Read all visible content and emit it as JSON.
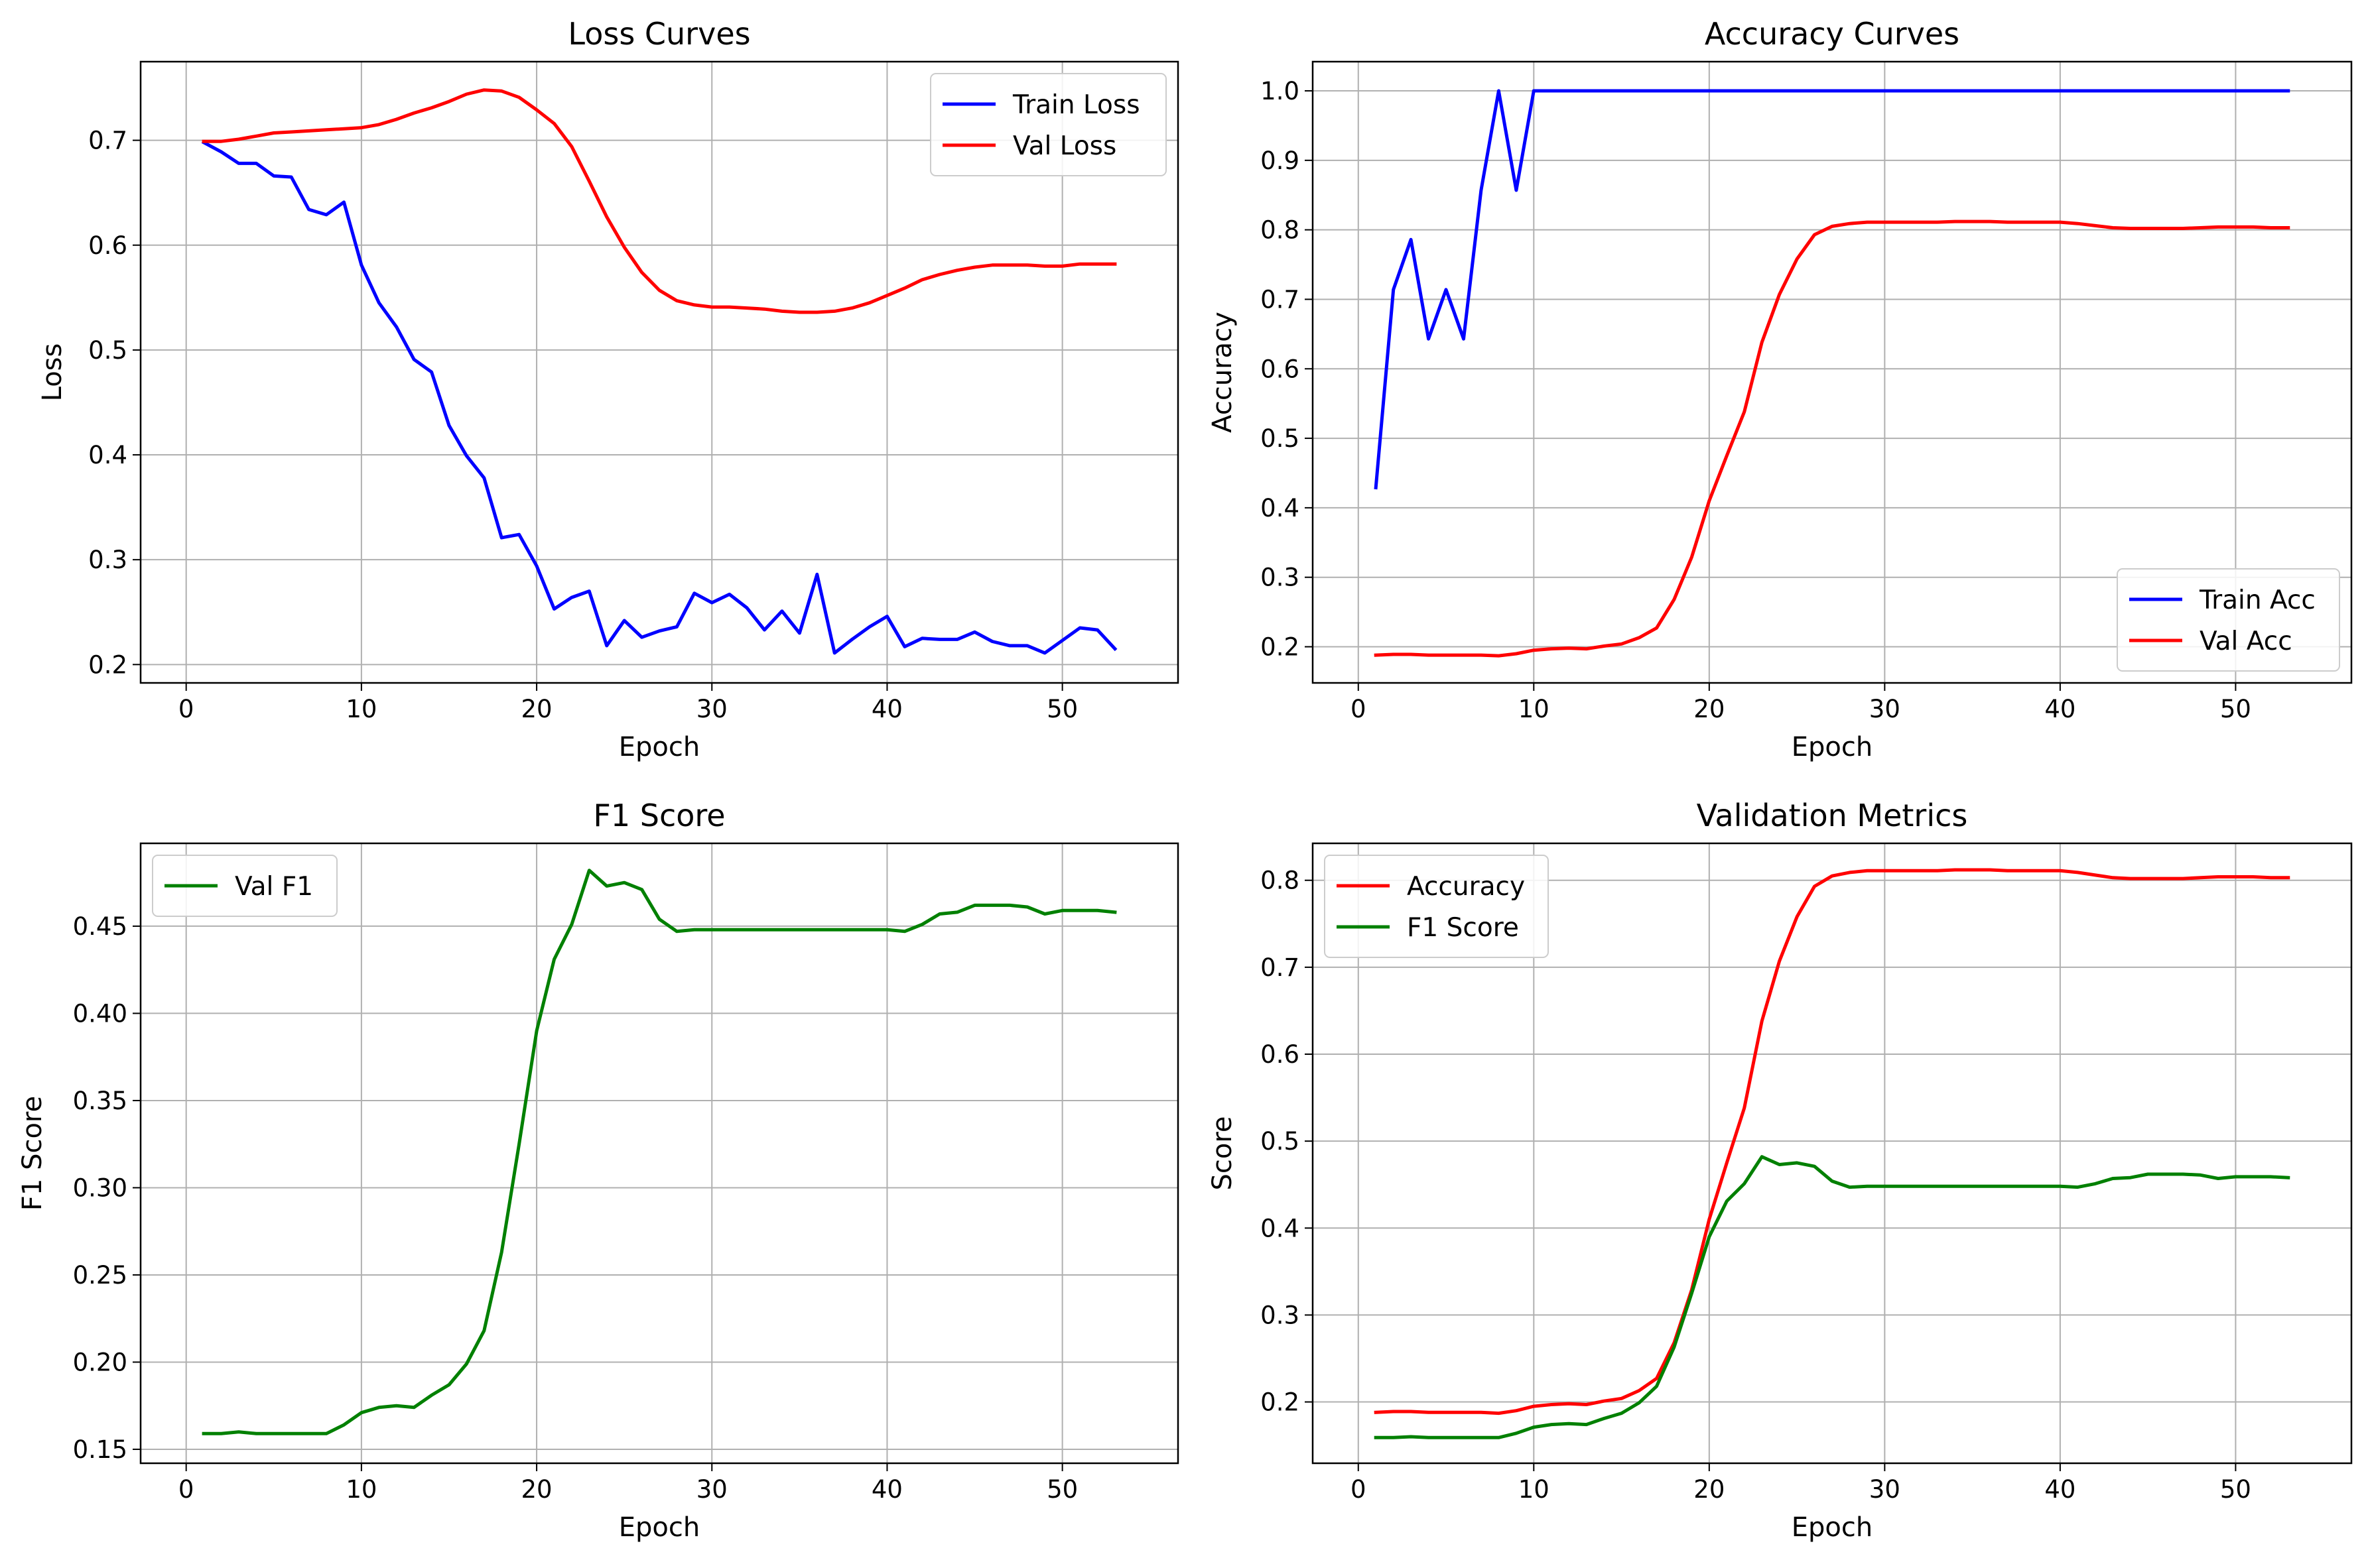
{
  "chart_data": [
    {
      "type": "line",
      "title": "Loss Curves",
      "xlabel": "Epoch",
      "ylabel": "Loss",
      "xlim": [
        -2.6,
        56.6
      ],
      "ylim": [
        0.1825,
        0.775
      ],
      "xticks": [
        0,
        10,
        20,
        30,
        40,
        50
      ],
      "yticks": [
        0.2,
        0.3,
        0.4,
        0.5,
        0.6,
        0.7
      ],
      "ytick_labels": [
        "0.2",
        "0.3",
        "0.4",
        "0.5",
        "0.6",
        "0.7"
      ],
      "grid": true,
      "legend_position": "upper right",
      "x": [
        1,
        2,
        3,
        4,
        5,
        6,
        7,
        8,
        9,
        10,
        11,
        12,
        13,
        14,
        15,
        16,
        17,
        18,
        19,
        20,
        21,
        22,
        23,
        24,
        25,
        26,
        27,
        28,
        29,
        30,
        31,
        32,
        33,
        34,
        35,
        36,
        37,
        38,
        39,
        40,
        41,
        42,
        43,
        44,
        45,
        46,
        47,
        48,
        49,
        50,
        51,
        52,
        53
      ],
      "series": [
        {
          "name": "Train Loss",
          "color": "#0000ff",
          "values": [
            0.698,
            0.689,
            0.678,
            0.678,
            0.666,
            0.665,
            0.634,
            0.629,
            0.641,
            0.581,
            0.545,
            0.522,
            0.491,
            0.479,
            0.428,
            0.399,
            0.378,
            0.321,
            0.324,
            0.294,
            0.253,
            0.264,
            0.27,
            0.218,
            0.242,
            0.226,
            0.232,
            0.236,
            0.268,
            0.259,
            0.267,
            0.254,
            0.233,
            0.251,
            0.23,
            0.286,
            0.211,
            0.224,
            0.236,
            0.246,
            0.217,
            0.225,
            0.224,
            0.224,
            0.231,
            0.222,
            0.218,
            0.218,
            0.211,
            0.223,
            0.235,
            0.233,
            0.215
          ]
        },
        {
          "name": "Val Loss",
          "color": "#ff0000",
          "values": [
            0.699,
            0.699,
            0.701,
            0.704,
            0.707,
            0.708,
            0.709,
            0.71,
            0.711,
            0.712,
            0.715,
            0.72,
            0.726,
            0.731,
            0.737,
            0.744,
            0.748,
            0.747,
            0.741,
            0.729,
            0.716,
            0.694,
            0.661,
            0.627,
            0.598,
            0.574,
            0.557,
            0.547,
            0.543,
            0.541,
            0.541,
            0.54,
            0.539,
            0.537,
            0.536,
            0.536,
            0.537,
            0.54,
            0.545,
            0.552,
            0.559,
            0.567,
            0.572,
            0.576,
            0.579,
            0.581,
            0.581,
            0.581,
            0.58,
            0.58,
            0.582,
            0.582,
            0.582
          ]
        }
      ]
    },
    {
      "type": "line",
      "title": "Accuracy Curves",
      "xlabel": "Epoch",
      "ylabel": "Accuracy",
      "xlim": [
        -2.6,
        56.6
      ],
      "ylim": [
        0.148,
        1.042
      ],
      "xticks": [
        0,
        10,
        20,
        30,
        40,
        50
      ],
      "yticks": [
        0.2,
        0.3,
        0.4,
        0.5,
        0.6,
        0.7,
        0.8,
        0.9,
        1.0
      ],
      "ytick_labels": [
        "0.2",
        "0.3",
        "0.4",
        "0.5",
        "0.6",
        "0.7",
        "0.8",
        "0.9",
        "1.0"
      ],
      "grid": true,
      "legend_position": "lower right",
      "x": [
        1,
        2,
        3,
        4,
        5,
        6,
        7,
        8,
        9,
        10,
        11,
        12,
        13,
        14,
        15,
        16,
        17,
        18,
        19,
        20,
        21,
        22,
        23,
        24,
        25,
        26,
        27,
        28,
        29,
        30,
        31,
        32,
        33,
        34,
        35,
        36,
        37,
        38,
        39,
        40,
        41,
        42,
        43,
        44,
        45,
        46,
        47,
        48,
        49,
        50,
        51,
        52,
        53
      ],
      "series": [
        {
          "name": "Train Acc",
          "color": "#0000ff",
          "values": [
            0.429,
            0.714,
            0.786,
            0.643,
            0.714,
            0.643,
            0.857,
            1.0,
            0.857,
            1.0,
            1.0,
            1.0,
            1.0,
            1.0,
            1.0,
            1.0,
            1.0,
            1.0,
            1.0,
            1.0,
            1.0,
            1.0,
            1.0,
            1.0,
            1.0,
            1.0,
            1.0,
            1.0,
            1.0,
            1.0,
            1.0,
            1.0,
            1.0,
            1.0,
            1.0,
            1.0,
            1.0,
            1.0,
            1.0,
            1.0,
            1.0,
            1.0,
            1.0,
            1.0,
            1.0,
            1.0,
            1.0,
            1.0,
            1.0,
            1.0,
            1.0,
            1.0,
            1.0
          ]
        },
        {
          "name": "Val Acc",
          "color": "#ff0000",
          "values": [
            0.188,
            0.189,
            0.189,
            0.188,
            0.188,
            0.188,
            0.188,
            0.187,
            0.19,
            0.195,
            0.197,
            0.198,
            0.197,
            0.201,
            0.204,
            0.213,
            0.227,
            0.268,
            0.329,
            0.41,
            0.475,
            0.538,
            0.638,
            0.707,
            0.758,
            0.793,
            0.805,
            0.809,
            0.811,
            0.811,
            0.811,
            0.811,
            0.811,
            0.812,
            0.812,
            0.812,
            0.811,
            0.811,
            0.811,
            0.811,
            0.809,
            0.806,
            0.803,
            0.802,
            0.802,
            0.802,
            0.802,
            0.803,
            0.804,
            0.804,
            0.804,
            0.803,
            0.803
          ]
        }
      ]
    },
    {
      "type": "line",
      "title": "F1 Score",
      "xlabel": "Epoch",
      "ylabel": "F1 Score",
      "xlim": [
        -2.6,
        56.6
      ],
      "ylim": [
        0.142,
        0.4975
      ],
      "xticks": [
        0,
        10,
        20,
        30,
        40,
        50
      ],
      "yticks": [
        0.15,
        0.2,
        0.25,
        0.3,
        0.35,
        0.4,
        0.45
      ],
      "ytick_labels": [
        "0.15",
        "0.20",
        "0.25",
        "0.30",
        "0.35",
        "0.40",
        "0.45"
      ],
      "grid": true,
      "legend_position": "upper left",
      "x": [
        1,
        2,
        3,
        4,
        5,
        6,
        7,
        8,
        9,
        10,
        11,
        12,
        13,
        14,
        15,
        16,
        17,
        18,
        19,
        20,
        21,
        22,
        23,
        24,
        25,
        26,
        27,
        28,
        29,
        30,
        31,
        32,
        33,
        34,
        35,
        36,
        37,
        38,
        39,
        40,
        41,
        42,
        43,
        44,
        45,
        46,
        47,
        48,
        49,
        50,
        51,
        52,
        53
      ],
      "series": [
        {
          "name": "Val F1",
          "color": "#008000",
          "values": [
            0.159,
            0.159,
            0.16,
            0.159,
            0.159,
            0.159,
            0.159,
            0.159,
            0.164,
            0.171,
            0.174,
            0.175,
            0.174,
            0.181,
            0.187,
            0.199,
            0.218,
            0.263,
            0.325,
            0.39,
            0.431,
            0.451,
            0.482,
            0.473,
            0.475,
            0.471,
            0.454,
            0.447,
            0.448,
            0.448,
            0.448,
            0.448,
            0.448,
            0.448,
            0.448,
            0.448,
            0.448,
            0.448,
            0.448,
            0.448,
            0.447,
            0.451,
            0.457,
            0.458,
            0.462,
            0.462,
            0.462,
            0.461,
            0.457,
            0.459,
            0.459,
            0.459,
            0.458
          ]
        }
      ]
    },
    {
      "type": "line",
      "title": "Validation Metrics",
      "xlabel": "Epoch",
      "ylabel": "Score",
      "xlim": [
        -2.6,
        56.6
      ],
      "ylim": [
        0.1295,
        0.8425
      ],
      "xticks": [
        0,
        10,
        20,
        30,
        40,
        50
      ],
      "yticks": [
        0.2,
        0.3,
        0.4,
        0.5,
        0.6,
        0.7,
        0.8
      ],
      "ytick_labels": [
        "0.2",
        "0.3",
        "0.4",
        "0.5",
        "0.6",
        "0.7",
        "0.8"
      ],
      "grid": true,
      "legend_position": "upper left",
      "x": [
        1,
        2,
        3,
        4,
        5,
        6,
        7,
        8,
        9,
        10,
        11,
        12,
        13,
        14,
        15,
        16,
        17,
        18,
        19,
        20,
        21,
        22,
        23,
        24,
        25,
        26,
        27,
        28,
        29,
        30,
        31,
        32,
        33,
        34,
        35,
        36,
        37,
        38,
        39,
        40,
        41,
        42,
        43,
        44,
        45,
        46,
        47,
        48,
        49,
        50,
        51,
        52,
        53
      ],
      "series": [
        {
          "name": "Accuracy",
          "color": "#ff0000",
          "values": [
            0.188,
            0.189,
            0.189,
            0.188,
            0.188,
            0.188,
            0.188,
            0.187,
            0.19,
            0.195,
            0.197,
            0.198,
            0.197,
            0.201,
            0.204,
            0.213,
            0.227,
            0.268,
            0.329,
            0.41,
            0.475,
            0.538,
            0.638,
            0.707,
            0.758,
            0.793,
            0.805,
            0.809,
            0.811,
            0.811,
            0.811,
            0.811,
            0.811,
            0.812,
            0.812,
            0.812,
            0.811,
            0.811,
            0.811,
            0.811,
            0.809,
            0.806,
            0.803,
            0.802,
            0.802,
            0.802,
            0.802,
            0.803,
            0.804,
            0.804,
            0.804,
            0.803,
            0.803
          ]
        },
        {
          "name": "F1 Score",
          "color": "#008000",
          "values": [
            0.159,
            0.159,
            0.16,
            0.159,
            0.159,
            0.159,
            0.159,
            0.159,
            0.164,
            0.171,
            0.174,
            0.175,
            0.174,
            0.181,
            0.187,
            0.199,
            0.218,
            0.263,
            0.325,
            0.39,
            0.431,
            0.451,
            0.482,
            0.473,
            0.475,
            0.471,
            0.454,
            0.447,
            0.448,
            0.448,
            0.448,
            0.448,
            0.448,
            0.448,
            0.448,
            0.448,
            0.448,
            0.448,
            0.448,
            0.448,
            0.447,
            0.451,
            0.457,
            0.458,
            0.462,
            0.462,
            0.462,
            0.461,
            0.457,
            0.459,
            0.459,
            0.459,
            0.458
          ]
        }
      ]
    }
  ]
}
